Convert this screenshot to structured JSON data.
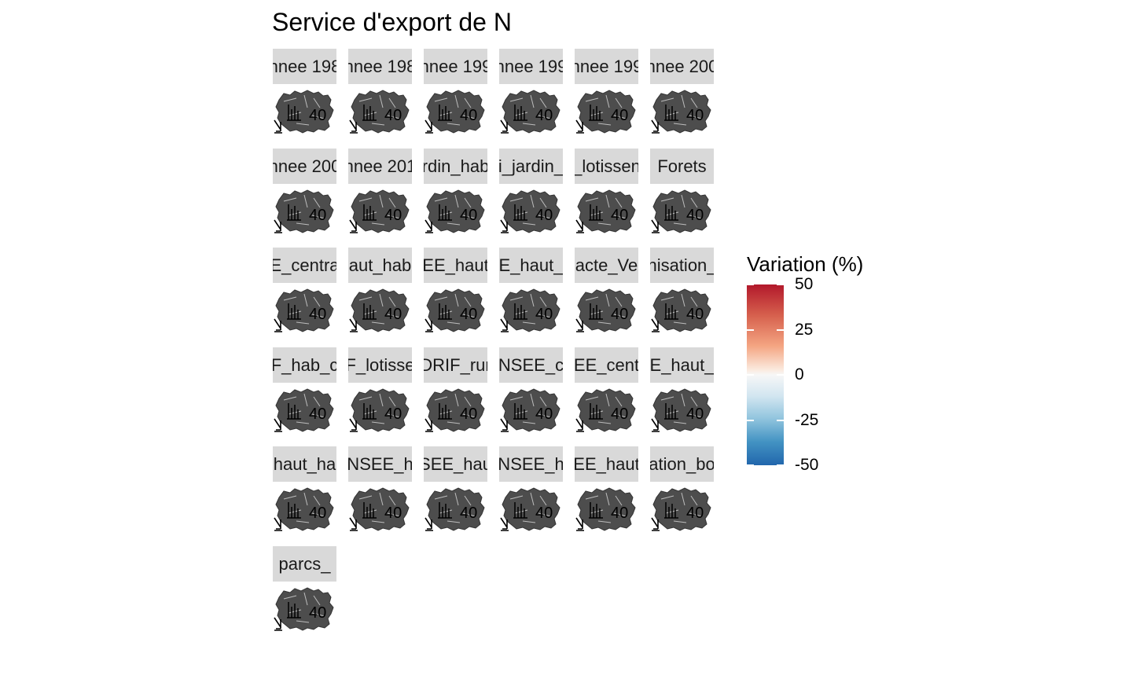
{
  "title": "Service d'export de N",
  "chart_data": {
    "type": "heatmap",
    "title": "Service d'export de N",
    "panels": [
      "nnee 198",
      "nnee 198",
      "nnee 199",
      "nnee 199",
      "nnee 199",
      "nnee 200",
      "nnee 200",
      "nnee 201",
      "rdin_hab",
      "i_jardin_",
      "_lotissen",
      "Forets",
      "E_centra",
      "aut_hab",
      "EE_haut",
      "E_haut_",
      "acte_Ve",
      "nisation_",
      "F_hab_c",
      "F_lotisse",
      "DRIF_rur",
      "NSEE_c",
      "EE_cent",
      "E_haut_",
      "haut_ha",
      "NSEE_h",
      "SEE_hau",
      "NSEE_h",
      "EE_haut",
      "ation_bo",
      "parcs_"
    ],
    "panel_map_label": "40",
    "legend": {
      "title": "Variation (%)",
      "range": [
        -50,
        50
      ],
      "ticks": [
        50,
        25,
        0,
        -25,
        -50
      ],
      "tick_labels": [
        "50",
        "25",
        "0",
        "-25",
        "-50"
      ],
      "colors": [
        "#b2182b",
        "#f7f7f7",
        "#2166ac"
      ],
      "placement": "right"
    }
  },
  "colors": {
    "map_fill": "#4d4d4d",
    "strip_bg": "#d9d9d9"
  }
}
